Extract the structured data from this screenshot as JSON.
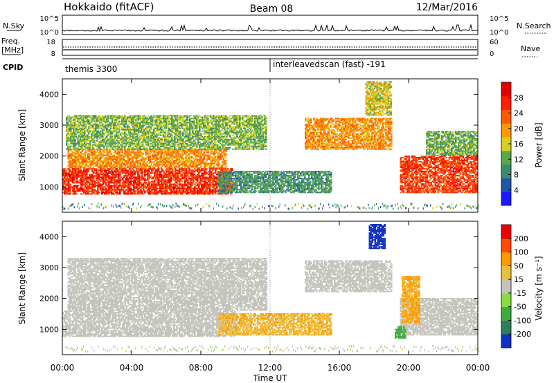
{
  "header": {
    "station": "Hokkaido (fitACF)",
    "beam": "Beam 08",
    "date": "12/Mar/2016"
  },
  "noise_panel": {
    "left_label": "N.Sky",
    "right_label": "N.Search",
    "left_ticks": [
      "10^5",
      "10^0"
    ],
    "right_ticks": [
      "10^5",
      "10^0"
    ]
  },
  "freq_panel": {
    "left_label_1": "Freq.",
    "left_label_2": "[MHz]",
    "left_ticks": [
      "18",
      "8"
    ],
    "right_label": "Nave",
    "right_ticks": [
      "60",
      "0"
    ]
  },
  "cpid_panel": {
    "label": "CPID",
    "program_1": "themis 3300",
    "program_2": "interleavedscan (fast) -191"
  },
  "colors": {
    "power_low": "#1428c8",
    "power_mid": "#2e8b57",
    "power_high": "#ff2000",
    "velocity_gray": "#c4c4bc",
    "velocity_green": "#66cc33",
    "velocity_red": "#ee1010"
  },
  "chart_data": [
    {
      "type": "heatmap",
      "panel": "power",
      "ylabel": "Slant Range [km]",
      "yticks": [
        "4000",
        "3000",
        "2000",
        "1000"
      ],
      "ylim": [
        180,
        4500
      ],
      "xlim_hours": [
        0,
        24
      ],
      "colorbar_label": "Power [dB]",
      "colorbar_ticks": [
        "28",
        "24",
        "20",
        "16",
        "12",
        "8",
        "4"
      ],
      "colorbar_colors": [
        "#1a1aff",
        "#2255aa",
        "#3d8a6e",
        "#5aa848",
        "#d6d020",
        "#ff9a00",
        "#ff5a00",
        "#ff1e00",
        "#e00000"
      ],
      "regions": [
        {
          "t0": 0.0,
          "t1": 9.8,
          "r0": 750,
          "r1": 1600,
          "value": 28
        },
        {
          "t0": 0.3,
          "t1": 9.5,
          "r0": 1600,
          "r1": 2200,
          "value": 22
        },
        {
          "t0": 0.2,
          "t1": 11.8,
          "r0": 2200,
          "r1": 3300,
          "value": 15
        },
        {
          "t0": 9.0,
          "t1": 15.5,
          "r0": 800,
          "r1": 1500,
          "value": 12
        },
        {
          "t0": 14.0,
          "t1": 19.0,
          "r0": 2200,
          "r1": 3200,
          "value": 22
        },
        {
          "t0": 17.5,
          "t1": 19.0,
          "r0": 3300,
          "r1": 4400,
          "value": 18
        },
        {
          "t0": 19.5,
          "t1": 23.9,
          "r0": 800,
          "r1": 2000,
          "value": 27
        },
        {
          "t0": 21.0,
          "t1": 23.9,
          "r0": 2000,
          "r1": 2800,
          "value": 14
        }
      ]
    },
    {
      "type": "heatmap",
      "panel": "velocity",
      "ylabel": "Slant Range [km]",
      "yticks": [
        "4000",
        "3000",
        "2000",
        "1000"
      ],
      "ylim": [
        180,
        4500
      ],
      "xlim_hours": [
        0,
        24
      ],
      "colorbar_label": "Velocity [m s⁻¹]",
      "colorbar_ticks": [
        "200",
        "100",
        "50",
        "15",
        "-15",
        "-50",
        "-100",
        "-200"
      ],
      "colorbar_colors": [
        "#1030c0",
        "#2e7d5e",
        "#3faa3f",
        "#88dd44",
        "#c4c4bc",
        "#e8c040",
        "#ff9a00",
        "#ff4a00",
        "#ee0000"
      ],
      "regions": [
        {
          "t0": 0.0,
          "t1": 10.0,
          "r0": 750,
          "r1": 1600,
          "value": 0
        },
        {
          "t0": 0.3,
          "t1": 11.8,
          "r0": 1600,
          "r1": 3300,
          "value": 0
        },
        {
          "t0": 9.0,
          "t1": 15.5,
          "r0": 800,
          "r1": 1500,
          "value": 30
        },
        {
          "t0": 14.0,
          "t1": 19.0,
          "r0": 2200,
          "r1": 3200,
          "value": 0
        },
        {
          "t0": 17.7,
          "t1": 18.6,
          "r0": 3600,
          "r1": 4400,
          "value": -180
        },
        {
          "t0": 19.5,
          "t1": 23.9,
          "r0": 800,
          "r1": 2000,
          "value": 0
        },
        {
          "t0": 19.6,
          "t1": 20.6,
          "r0": 1200,
          "r1": 2700,
          "value": 40
        },
        {
          "t0": 19.2,
          "t1": 19.8,
          "r0": 700,
          "r1": 1100,
          "value": -60
        }
      ]
    }
  ],
  "x_axis": {
    "ticks": [
      "00:00",
      "04:00",
      "08:00",
      "12:00",
      "16:00",
      "20:00",
      "00:00"
    ],
    "label": "Time UT"
  }
}
